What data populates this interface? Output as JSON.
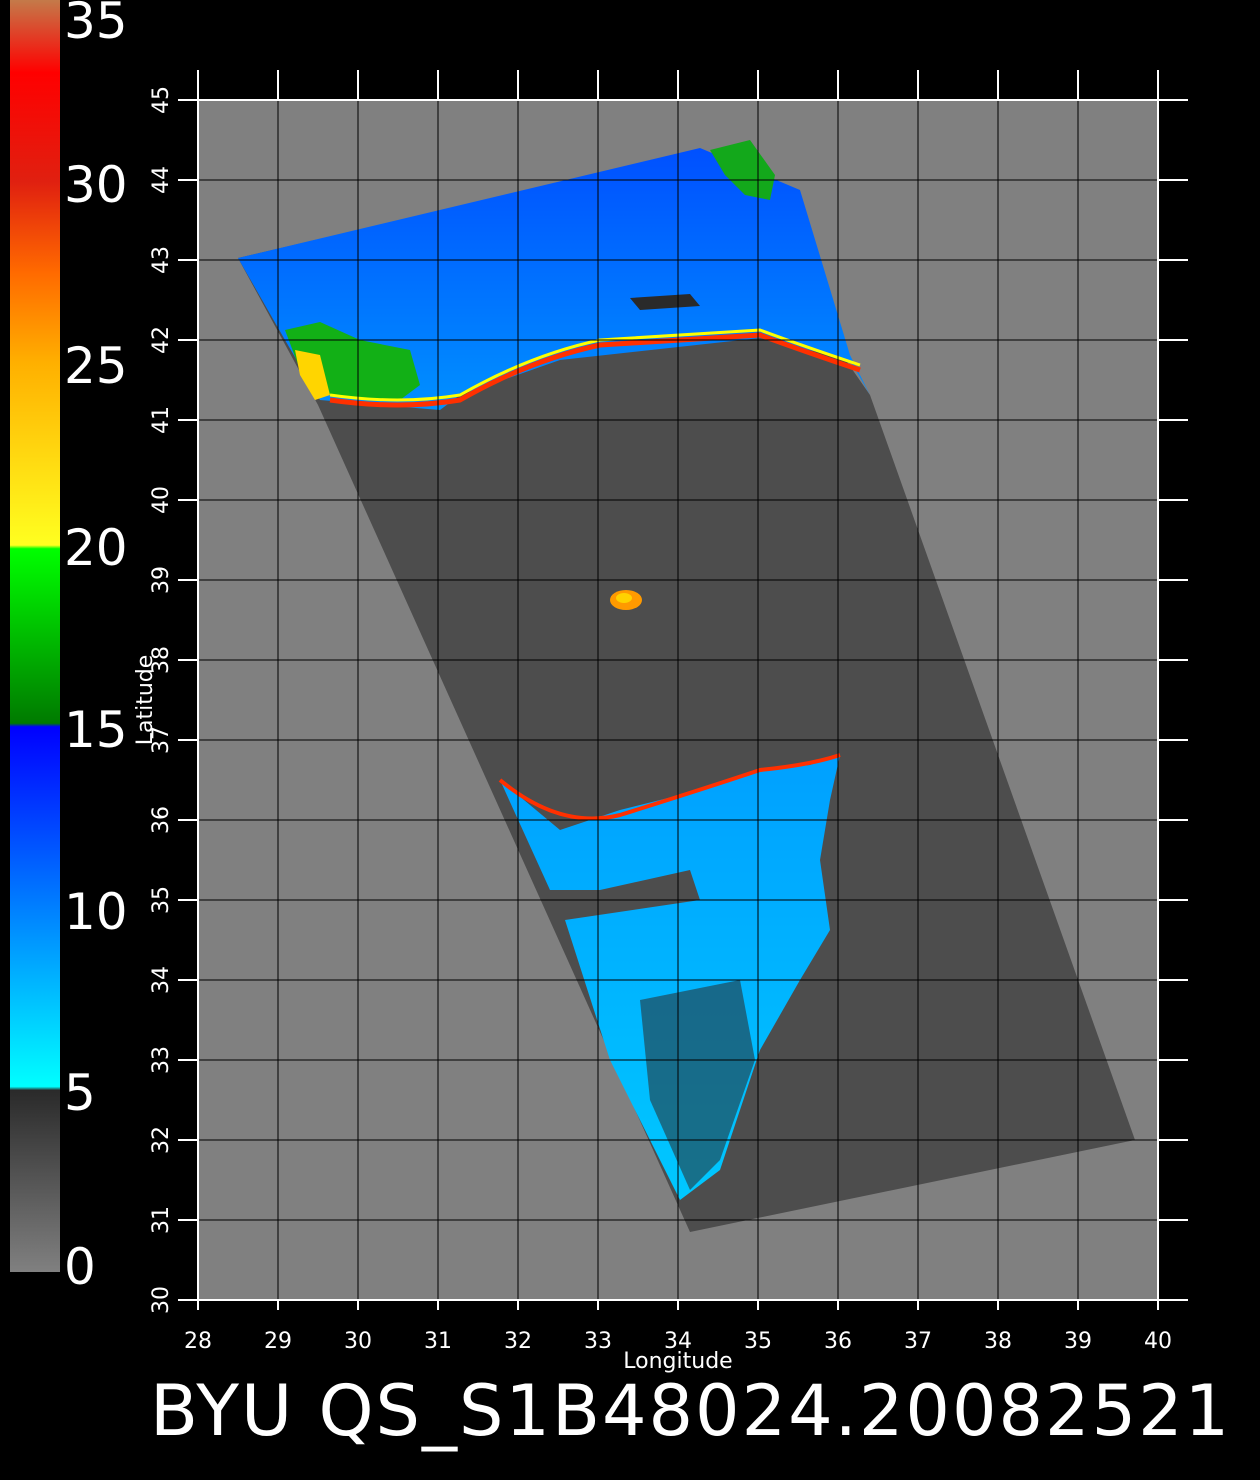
{
  "title": "BYU QS_S1B48024.20082521",
  "colorbar": {
    "ticks": [
      "35",
      "30",
      "25",
      "20",
      "15",
      "10",
      "5",
      "0"
    ],
    "stops": [
      {
        "value": 35,
        "color": "#c47a4a"
      },
      {
        "value": 33,
        "color": "#ff0000"
      },
      {
        "value": 30,
        "color": "#e02010"
      },
      {
        "value": 27.5,
        "color": "#ff6a00"
      },
      {
        "value": 25,
        "color": "#ffb000"
      },
      {
        "value": 20,
        "color": "#ffff20"
      },
      {
        "value": 19.9,
        "color": "#00ff00"
      },
      {
        "value": 15.1,
        "color": "#007a00"
      },
      {
        "value": 15,
        "color": "#0000ff"
      },
      {
        "value": 10,
        "color": "#0080ff"
      },
      {
        "value": 5.1,
        "color": "#00ffff"
      },
      {
        "value": 5,
        "color": "#2a2a2a"
      },
      {
        "value": 0,
        "color": "#808080"
      }
    ]
  },
  "axes": {
    "xlabel": "Longitude",
    "ylabel": "Latitude",
    "xticks": [
      "28",
      "29",
      "30",
      "31",
      "32",
      "33",
      "34",
      "35",
      "36",
      "37",
      "38",
      "39",
      "40"
    ],
    "yticks": [
      "30",
      "31",
      "32",
      "33",
      "34",
      "35",
      "36",
      "37",
      "38",
      "39",
      "40",
      "41",
      "42",
      "43",
      "44",
      "45"
    ],
    "xlim": [
      28,
      40
    ],
    "ylim": [
      30,
      45
    ]
  },
  "colors": {
    "background": "#000000",
    "land": "#808080",
    "swath": "#4d4d4d",
    "grid": "#000000"
  }
}
